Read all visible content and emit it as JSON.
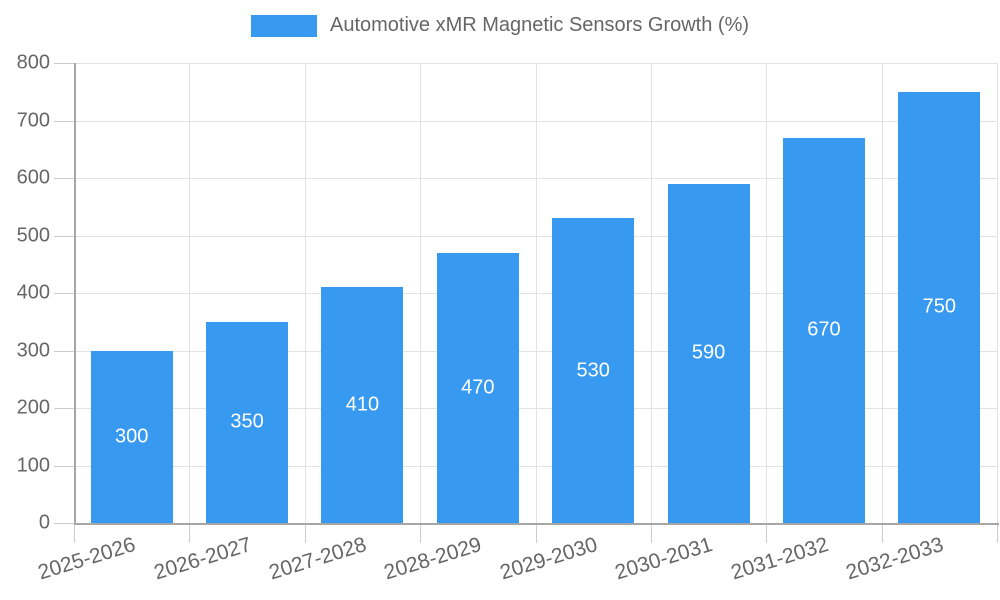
{
  "chart_data": {
    "type": "bar",
    "title": "Automotive xMR Magnetic Sensors Growth (%)",
    "legend": {
      "position": "top",
      "entries": [
        "Automotive xMR Magnetic Sensors Growth (%)"
      ]
    },
    "categories": [
      "2025-2026",
      "2026-2027",
      "2027-2028",
      "2028-2029",
      "2029-2030",
      "2030-2031",
      "2031-2032",
      "2032-2033"
    ],
    "values": [
      300,
      350,
      410,
      470,
      530,
      590,
      670,
      750
    ],
    "value_labels": [
      "300",
      "350",
      "410",
      "470",
      "530",
      "590",
      "670",
      "750"
    ],
    "xlabel": "",
    "ylabel": "",
    "ylim": [
      0,
      800
    ],
    "ytick_step": 100,
    "ytick_labels": [
      "0",
      "100",
      "200",
      "300",
      "400",
      "500",
      "600",
      "700",
      "800"
    ],
    "grid": true,
    "colors": {
      "bar": "#3899F1",
      "bar_value_text": "#FFFFFF",
      "gridline": "#E2E2E2",
      "tick": "#CCCCCC",
      "axis_line": "#A6A6A6",
      "tick_text": "#666666",
      "legend_text": "#666666"
    }
  }
}
